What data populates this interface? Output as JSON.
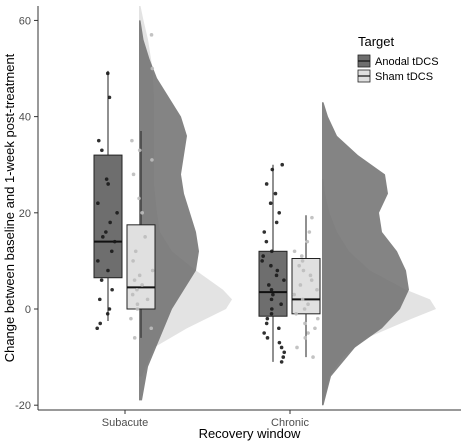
{
  "chart_data": {
    "type": "raincloud",
    "xlabel": "Recovery window",
    "ylabel": "Change between baseline and 1-week post-treatment",
    "ylim": [
      -21,
      63
    ],
    "yticks": [
      -20,
      0,
      20,
      40,
      60
    ],
    "categories": [
      "Subacute",
      "Chronic"
    ],
    "legend": {
      "title": "Target",
      "position": "top-right",
      "entries": [
        {
          "label": "Anodal tDCS",
          "color": "#6e6e6e"
        },
        {
          "label": "Sham tDCS",
          "color": "#e0e0e0"
        }
      ]
    },
    "grid": false,
    "groups": [
      {
        "category": "Subacute",
        "series": "Anodal tDCS",
        "box": {
          "min": -2.5,
          "q1": 6.5,
          "median": 14,
          "q3": 32,
          "max": 49.5
        },
        "points": [
          49,
          44,
          35,
          33,
          27,
          26,
          22,
          20,
          18,
          16,
          15,
          14,
          12,
          10,
          8,
          6,
          4,
          2,
          0,
          -1,
          -3,
          -4
        ],
        "density": [
          [
            -19,
            0.02
          ],
          [
            -12,
            0.06
          ],
          [
            -6,
            0.14
          ],
          [
            0,
            0.22
          ],
          [
            4,
            0.3
          ],
          [
            8,
            0.38
          ],
          [
            12,
            0.4
          ],
          [
            16,
            0.38
          ],
          [
            20,
            0.34
          ],
          [
            24,
            0.3
          ],
          [
            28,
            0.28
          ],
          [
            32,
            0.3
          ],
          [
            36,
            0.32
          ],
          [
            40,
            0.28
          ],
          [
            44,
            0.2
          ],
          [
            48,
            0.12
          ],
          [
            52,
            0.07
          ],
          [
            56,
            0.03
          ],
          [
            60,
            0.01
          ]
        ]
      },
      {
        "category": "Subacute",
        "series": "Sham tDCS",
        "box": {
          "min": -6,
          "q1": 0,
          "median": 4.5,
          "q3": 17.5,
          "max": 37
        },
        "points": [
          57,
          50,
          35,
          33,
          31,
          28,
          23,
          20,
          15,
          12,
          10,
          8,
          7,
          6,
          5,
          4,
          3,
          2,
          1,
          0,
          -2,
          -4,
          -6
        ],
        "density": [
          [
            -14,
            0.02
          ],
          [
            -8,
            0.1
          ],
          [
            -4,
            0.32
          ],
          [
            0,
            0.58
          ],
          [
            2,
            0.62
          ],
          [
            4,
            0.56
          ],
          [
            8,
            0.38
          ],
          [
            12,
            0.22
          ],
          [
            16,
            0.14
          ],
          [
            20,
            0.12
          ],
          [
            26,
            0.1
          ],
          [
            32,
            0.1
          ],
          [
            38,
            0.1
          ],
          [
            44,
            0.1
          ],
          [
            50,
            0.09
          ],
          [
            56,
            0.06
          ],
          [
            60,
            0.03
          ],
          [
            63,
            0.01
          ]
        ]
      },
      {
        "category": "Chronic",
        "series": "Anodal tDCS",
        "box": {
          "min": -11,
          "q1": -1.5,
          "median": 3.5,
          "q3": 12,
          "max": 30
        },
        "points": [
          30,
          29,
          26,
          24,
          22,
          20,
          18,
          16,
          14,
          12,
          11,
          10,
          9,
          8,
          7,
          6,
          5,
          4,
          3,
          2,
          1,
          0,
          -1,
          -2,
          -3,
          -4,
          -5,
          -6,
          -7,
          -8,
          -9,
          -10,
          -11
        ],
        "density": [
          [
            -20,
            0.01
          ],
          [
            -14,
            0.06
          ],
          [
            -8,
            0.22
          ],
          [
            -4,
            0.4
          ],
          [
            0,
            0.52
          ],
          [
            4,
            0.58
          ],
          [
            8,
            0.56
          ],
          [
            12,
            0.5
          ],
          [
            16,
            0.4
          ],
          [
            20,
            0.38
          ],
          [
            24,
            0.44
          ],
          [
            28,
            0.42
          ],
          [
            32,
            0.24
          ],
          [
            36,
            0.1
          ],
          [
            40,
            0.04
          ],
          [
            43,
            0.01
          ]
        ]
      },
      {
        "category": "Chronic",
        "series": "Sham tDCS",
        "box": {
          "min": -10,
          "q1": -1,
          "median": 2,
          "q3": 10.5,
          "max": 19.5
        },
        "points": [
          19,
          16,
          14,
          12,
          11,
          10,
          9,
          8,
          7,
          6,
          5,
          4,
          3,
          2,
          1,
          0,
          -1,
          -2,
          -3,
          -4,
          -5,
          -6,
          -8,
          -10
        ],
        "density": [
          [
            -20,
            0.01
          ],
          [
            -14,
            0.05
          ],
          [
            -10,
            0.14
          ],
          [
            -6,
            0.3
          ],
          [
            -2,
            0.6
          ],
          [
            0,
            0.76
          ],
          [
            2,
            0.72
          ],
          [
            4,
            0.56
          ],
          [
            8,
            0.32
          ],
          [
            12,
            0.18
          ],
          [
            16,
            0.1
          ],
          [
            20,
            0.05
          ],
          [
            24,
            0.02
          ],
          [
            27,
            0.01
          ]
        ]
      }
    ]
  }
}
